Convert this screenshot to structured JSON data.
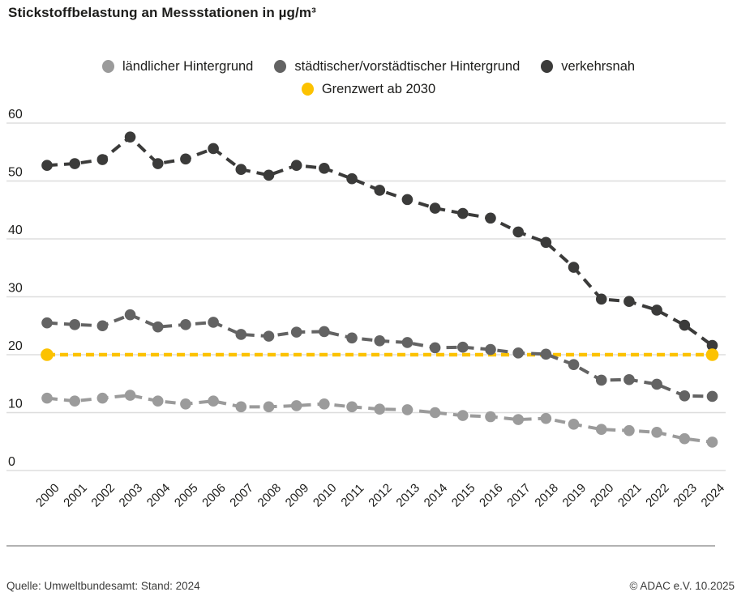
{
  "title": "Stickstoffbelastung an Messstationen in µg/m³",
  "legend": [
    {
      "label": "ländlicher Hintergrund",
      "color": "#9b9b9b"
    },
    {
      "label": "städtischer/vorstädtischer Hintergrund",
      "color": "#636363"
    },
    {
      "label": "verkehrsnah",
      "color": "#3b3b3a"
    },
    {
      "label": "Grenzwert ab 2030",
      "color": "#fcc200"
    }
  ],
  "footer": {
    "source": "Quelle: Umweltbundesamt: Stand: 2024",
    "copyright": "© ADAC e.V. 10.2025"
  },
  "chart_data": {
    "type": "line",
    "title": "Stickstoffbelastung an Messstationen in µg/m³",
    "categories": [
      "2000",
      "2001",
      "2002",
      "2003",
      "2004",
      "2005",
      "2006",
      "2007",
      "2008",
      "2009",
      "2010",
      "2011",
      "2012",
      "2013",
      "2014",
      "2015",
      "2016",
      "2017",
      "2018",
      "2019",
      "2020",
      "2021",
      "2022",
      "2023",
      "2024"
    ],
    "series": [
      {
        "name": "ländlicher Hintergrund",
        "color": "#9b9b9b",
        "values": [
          12.5,
          12,
          12.5,
          13,
          12,
          11.5,
          12,
          11,
          11,
          11.2,
          11.5,
          11,
          10.6,
          10.5,
          10,
          9.5,
          9.3,
          8.8,
          9,
          8,
          7.1,
          6.9,
          6.6,
          5.5,
          4.9
        ]
      },
      {
        "name": "städtischer/vorstädtischer Hintergrund",
        "color": "#636363",
        "values": [
          25.5,
          25.2,
          25,
          26.9,
          24.8,
          25.2,
          25.6,
          23.5,
          23.2,
          23.9,
          24,
          22.9,
          22.4,
          22.1,
          21.2,
          21.3,
          20.9,
          20.3,
          20.1,
          18.3,
          15.6,
          15.7,
          14.9,
          12.9,
          12.8
        ]
      },
      {
        "name": "verkehrsnah",
        "color": "#3b3b3a",
        "values": [
          52.7,
          53,
          53.7,
          57.6,
          53,
          53.8,
          55.6,
          52,
          51,
          52.7,
          52.2,
          50.4,
          48.4,
          46.8,
          45.3,
          44.4,
          43.6,
          41.2,
          39.4,
          35.1,
          29.6,
          29.2,
          27.7,
          25.1,
          21.6
        ]
      }
    ],
    "reference_line": {
      "name": "Grenzwert ab 2030",
      "value": 20,
      "color": "#fcc200",
      "style": "dashed"
    },
    "xlabel": "",
    "ylabel": "",
    "ylim": [
      0,
      60
    ],
    "yticks": [
      0,
      10,
      20,
      30,
      40,
      50,
      60
    ],
    "grid": true,
    "legend_position": "top"
  }
}
